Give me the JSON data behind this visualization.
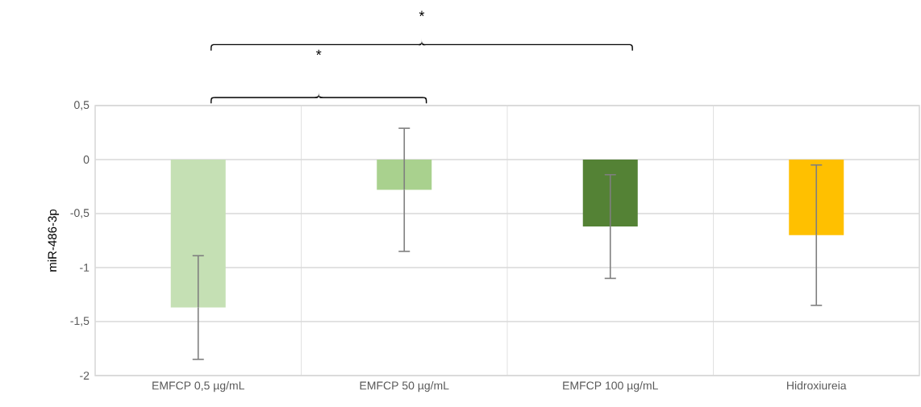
{
  "chart_data": {
    "type": "bar",
    "ylabel": "miR-486-3p",
    "categories": [
      "EMFCP 0,5 µg/mL",
      "EMFCP 50 µg/mL",
      "EMFCP 100 µg/mL",
      "Hidroxiureia"
    ],
    "values": [
      -1.37,
      -0.28,
      -0.62,
      -0.7
    ],
    "errors": [
      0.48,
      0.57,
      0.48,
      0.65
    ],
    "colors": [
      "#c5e0b4",
      "#a9d18e",
      "#548235",
      "#ffc000"
    ],
    "ylim": [
      -2,
      0.5
    ],
    "yticks": [
      {
        "value": 0.5,
        "label": "0,5"
      },
      0,
      {
        "value": -0.5,
        "label": "-0,5"
      },
      -1,
      {
        "value": -1.5,
        "label": "-1,5"
      },
      -2
    ],
    "grid": true,
    "annotations": [
      "*",
      "*"
    ]
  }
}
